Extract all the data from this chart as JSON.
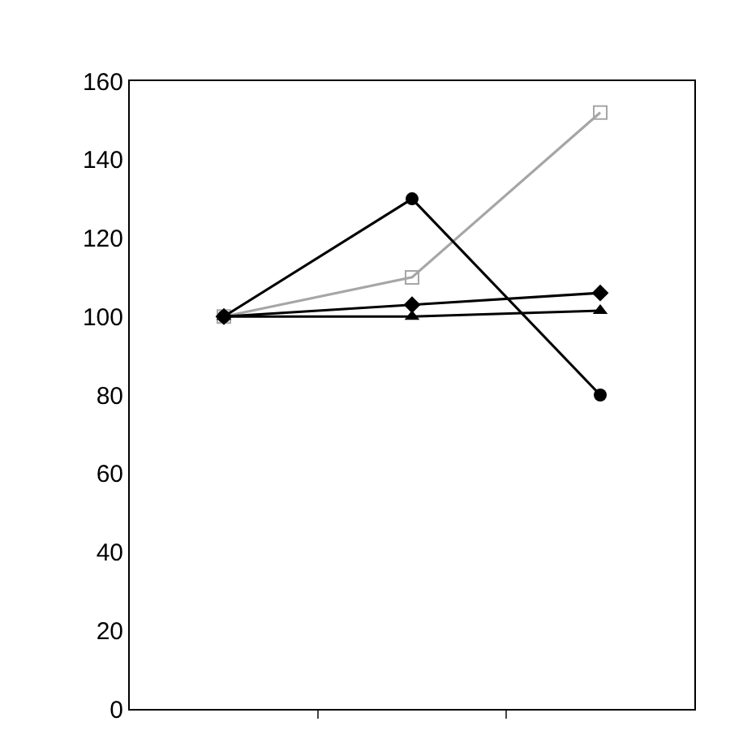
{
  "chart_data": {
    "type": "line",
    "categories": [
      null,
      null,
      null
    ],
    "series": [
      {
        "color": "#a6a6a6",
        "values": [
          100,
          110,
          152
        ],
        "marker": "square"
      },
      {
        "color": "#000000",
        "values": [
          100,
          103,
          106
        ],
        "marker": "diamond"
      },
      {
        "color": "#000000",
        "values": [
          100,
          100,
          101.5
        ],
        "marker": "triangle"
      },
      {
        "color": "#000000",
        "values": [
          100,
          130,
          80
        ],
        "marker": "circle"
      }
    ],
    "ylim": [
      0,
      160
    ],
    "yticks": [
      0,
      20,
      40,
      60,
      80,
      100,
      120,
      140,
      160
    ],
    "tick_labels": "y",
    "line_style": "solid"
  }
}
